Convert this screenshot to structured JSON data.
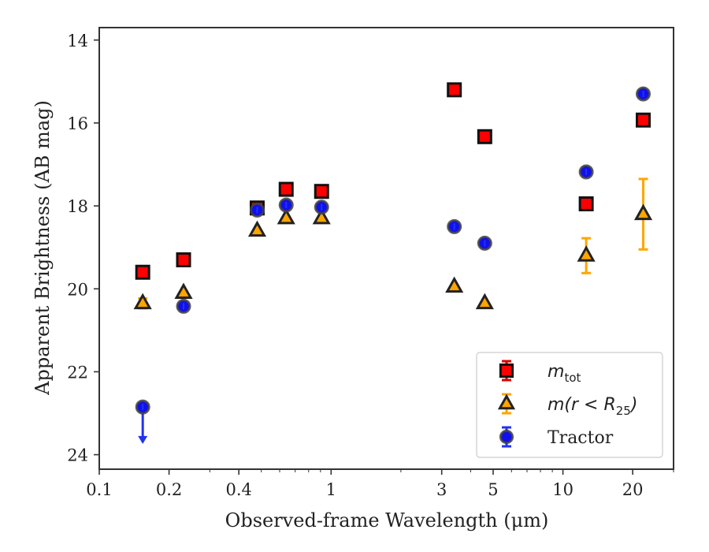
{
  "chart_data": {
    "type": "scatter",
    "title": "",
    "xlabel": "Observed-frame Wavelength (μm)",
    "ylabel": "Apparent Brightness (AB mag)",
    "xscale": "log",
    "xlim": [
      0.1,
      30
    ],
    "ylim": [
      24.35,
      13.7
    ],
    "y_inverted": true,
    "x_ticks": [
      0.1,
      0.2,
      0.4,
      1,
      3,
      5,
      10,
      20
    ],
    "x_tick_labels": [
      "0.1",
      "0.2",
      "0.4",
      "1",
      "3",
      "5",
      "10",
      "20"
    ],
    "y_ticks": [
      14,
      16,
      18,
      20,
      22,
      24
    ],
    "y_tick_labels": [
      "14",
      "16",
      "18",
      "20",
      "22",
      "24"
    ],
    "grid": false,
    "legend_position": "bottom-right",
    "series": [
      {
        "name": "m_tot",
        "marker": "square",
        "color": "#ff0000",
        "edge_color": "#111111",
        "x": [
          0.154,
          0.231,
          0.48,
          0.64,
          0.91,
          3.4,
          4.6,
          12.6,
          22.2
        ],
        "y": [
          19.6,
          19.3,
          18.05,
          17.6,
          17.65,
          15.2,
          16.33,
          17.95,
          15.93
        ],
        "yerr": [
          0.05,
          0.05,
          0.05,
          0.05,
          0.05,
          0.05,
          0.05,
          0.05,
          0.05
        ]
      },
      {
        "name": "m(r < R25)",
        "marker": "triangle",
        "color": "#ffa500",
        "edge_color": "#222222",
        "x": [
          0.154,
          0.231,
          0.48,
          0.64,
          0.91,
          3.4,
          4.6,
          12.6,
          22.2
        ],
        "y": [
          20.35,
          20.1,
          18.6,
          18.3,
          18.3,
          19.95,
          20.35,
          19.2,
          18.2
        ],
        "yerr": [
          0.12,
          0.05,
          0.05,
          0.05,
          0.05,
          0.05,
          0.05,
          0.42,
          0.85
        ]
      },
      {
        "name": "Tractor",
        "marker": "circle",
        "color": "#1010ee",
        "edge_color": "#444444",
        "x": [
          0.154,
          0.231,
          0.48,
          0.64,
          0.91,
          3.4,
          4.6,
          12.6,
          22.2
        ],
        "y": [
          22.85,
          20.42,
          18.1,
          17.98,
          18.03,
          18.5,
          18.9,
          17.18,
          15.3
        ],
        "yerr": [
          0.05,
          0.05,
          0.05,
          0.05,
          0.05,
          0.05,
          0.05,
          0.05,
          0.05
        ],
        "upper_limit": [
          true,
          false,
          false,
          false,
          false,
          false,
          false,
          false,
          false
        ]
      }
    ],
    "legend": {
      "entries": [
        {
          "label_main": "m",
          "label_sub": "tot",
          "marker": "square"
        },
        {
          "label_main": "m(r < R",
          "label_sub": "25",
          "label_tail": ")",
          "marker": "triangle"
        },
        {
          "label_main": "Tractor",
          "label_sub": "",
          "marker": "circle"
        }
      ]
    }
  }
}
